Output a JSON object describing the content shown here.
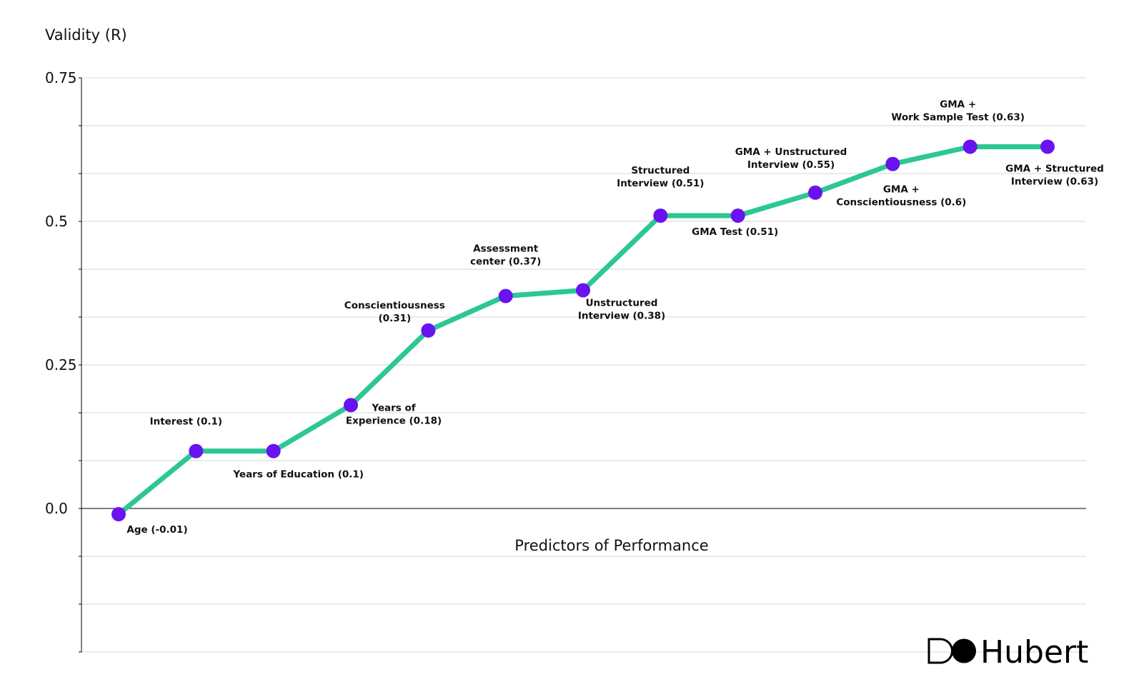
{
  "chart_data": {
    "type": "line",
    "ylabel": "Validity (R)",
    "xlabel": "Predictors of Performance",
    "ylim": [
      -0.25,
      0.75
    ],
    "y_ticks": [
      0.0,
      0.25,
      0.5,
      0.75
    ],
    "y_tick_labels": [
      "0.0",
      "0.25",
      "0.5",
      "0.75"
    ],
    "grid": true,
    "legend": "none",
    "colors": {
      "line": "#2cc795",
      "marker": "#6a12f0",
      "grid": "#d6d6d6"
    },
    "points": [
      {
        "name": "Age",
        "y": -0.01,
        "label": [
          "Age (-0.01)"
        ],
        "label_pos": "below-right"
      },
      {
        "name": "Interest",
        "y": 0.1,
        "label": [
          "Interest (0.1)"
        ],
        "label_pos": "above"
      },
      {
        "name": "Years of Education",
        "y": 0.1,
        "label": [
          "Years of Education (0.1)"
        ],
        "label_pos": "below-right"
      },
      {
        "name": "Years of Experience",
        "y": 0.18,
        "label": [
          "Years of",
          "Experience (0.18)"
        ],
        "label_pos": "below-right"
      },
      {
        "name": "Conscientiousness",
        "y": 0.31,
        "label": [
          "Conscientiousness",
          "(0.31)"
        ],
        "label_pos": "above-left"
      },
      {
        "name": "Assessment center",
        "y": 0.37,
        "label": [
          "Assessment",
          "center (0.37)"
        ],
        "label_pos": "above"
      },
      {
        "name": "Unstructured Interview",
        "y": 0.38,
        "label": [
          "Unstructured",
          "Interview (0.38)"
        ],
        "label_pos": "below-right"
      },
      {
        "name": "Structured Interview",
        "y": 0.51,
        "label": [
          "Structured",
          "Interview (0.51)"
        ],
        "label_pos": "above"
      },
      {
        "name": "GMA Test",
        "y": 0.51,
        "label": [
          "GMA Test (0.51)"
        ],
        "label_pos": "below"
      },
      {
        "name": "GMA + Unstructured Interview",
        "y": 0.55,
        "label": [
          "GMA + Unstructured",
          "Interview (0.55)"
        ],
        "label_pos": "above-left"
      },
      {
        "name": "GMA + Conscientiousness",
        "y": 0.6,
        "label": [
          "GMA +",
          "Conscientiousness (0.6)"
        ],
        "label_pos": "below"
      },
      {
        "name": "GMA + Work Sample Test",
        "y": 0.63,
        "label": [
          "GMA +",
          "Work Sample Test (0.63)"
        ],
        "label_pos": "above-left"
      },
      {
        "name": "GMA + Structured Interview",
        "y": 0.63,
        "label": [
          "GMA + Structured",
          "Interview (0.63)"
        ],
        "label_pos": "below-right"
      }
    ]
  },
  "brand": {
    "name": "Hubert",
    "icon": "hubert-logo-icon"
  }
}
